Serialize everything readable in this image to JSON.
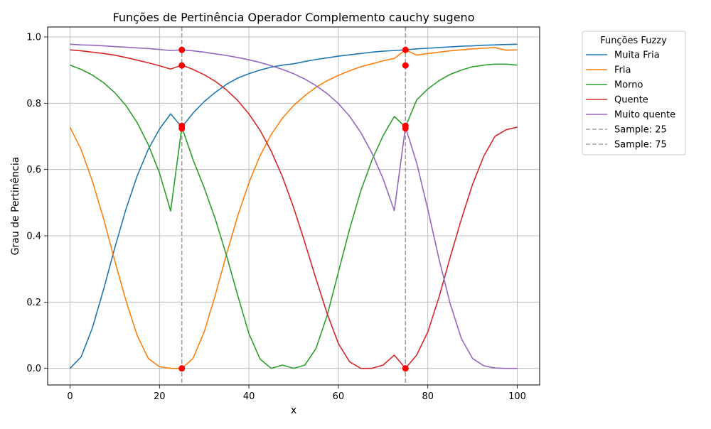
{
  "chart_data": {
    "type": "line",
    "title": "Funções de Pertinência Operador Complemento cauchy sugeno",
    "xlabel": "x",
    "ylabel": "Grau de Pertinência",
    "xlim": [
      -5,
      105
    ],
    "ylim": [
      -0.05,
      1.03
    ],
    "xticks": [
      0,
      20,
      40,
      60,
      80,
      100
    ],
    "xtick_labels": [
      "0",
      "20",
      "40",
      "60",
      "80",
      "100"
    ],
    "yticks": [
      0.0,
      0.2,
      0.4,
      0.6,
      0.8,
      1.0
    ],
    "ytick_labels": [
      "0.0",
      "0.2",
      "0.4",
      "0.6",
      "0.8",
      "1.0"
    ],
    "grid": true,
    "legend": {
      "title": "Funções Fuzzy",
      "placement": "outside-right"
    },
    "x": [
      0,
      2.5,
      5,
      7.5,
      10,
      12.5,
      15,
      17.5,
      20,
      22.5,
      25,
      27.5,
      30,
      32.5,
      35,
      37.5,
      40,
      42.5,
      45,
      47.5,
      50,
      52.5,
      55,
      57.5,
      60,
      62.5,
      65,
      67.5,
      70,
      72.5,
      75,
      77.5,
      80,
      82.5,
      85,
      87.5,
      90,
      92.5,
      95,
      97.5,
      100
    ],
    "series": [
      {
        "name": "Muita Fria",
        "color": "#1f77b4",
        "values": [
          0.0,
          0.035,
          0.122,
          0.238,
          0.363,
          0.48,
          0.58,
          0.661,
          0.722,
          0.768,
          0.728,
          0.77,
          0.805,
          0.833,
          0.857,
          0.876,
          0.889,
          0.9,
          0.909,
          0.915,
          0.919,
          0.926,
          0.932,
          0.937,
          0.942,
          0.946,
          0.95,
          0.954,
          0.957,
          0.959,
          0.961,
          0.964,
          0.966,
          0.968,
          0.97,
          0.972,
          0.973,
          0.975,
          0.976,
          0.977,
          0.978
        ]
      },
      {
        "name": "Fria",
        "color": "#ff7f0e",
        "values": [
          0.728,
          0.66,
          0.565,
          0.452,
          0.325,
          0.205,
          0.1,
          0.03,
          0.005,
          0.0,
          0.0,
          0.03,
          0.11,
          0.222,
          0.345,
          0.46,
          0.56,
          0.642,
          0.706,
          0.755,
          0.793,
          0.823,
          0.848,
          0.868,
          0.884,
          0.898,
          0.91,
          0.919,
          0.928,
          0.935,
          0.961,
          0.945,
          0.95,
          0.954,
          0.958,
          0.961,
          0.964,
          0.966,
          0.968,
          0.96,
          0.961
        ]
      },
      {
        "name": "Morno",
        "color": "#2ca02c",
        "values": [
          0.915,
          0.902,
          0.885,
          0.862,
          0.832,
          0.793,
          0.742,
          0.675,
          0.59,
          0.475,
          0.728,
          0.63,
          0.545,
          0.45,
          0.34,
          0.22,
          0.105,
          0.028,
          0.0,
          0.01,
          0.0,
          0.01,
          0.06,
          0.16,
          0.29,
          0.42,
          0.535,
          0.628,
          0.702,
          0.76,
          0.728,
          0.81,
          0.843,
          0.868,
          0.887,
          0.9,
          0.91,
          0.915,
          0.918,
          0.918,
          0.915
        ]
      },
      {
        "name": "Quente",
        "color": "#d62728",
        "values": [
          0.961,
          0.958,
          0.954,
          0.95,
          0.945,
          0.938,
          0.93,
          0.922,
          0.913,
          0.903,
          0.915,
          0.902,
          0.886,
          0.866,
          0.84,
          0.808,
          0.768,
          0.718,
          0.655,
          0.578,
          0.485,
          0.38,
          0.27,
          0.165,
          0.075,
          0.02,
          0.0,
          0.0,
          0.01,
          0.04,
          0.0,
          0.04,
          0.11,
          0.215,
          0.335,
          0.45,
          0.555,
          0.64,
          0.7,
          0.72,
          0.728
        ]
      },
      {
        "name": "Muito quente",
        "color": "#9467bd",
        "values": [
          0.978,
          0.976,
          0.975,
          0.973,
          0.971,
          0.969,
          0.967,
          0.965,
          0.962,
          0.959,
          0.961,
          0.958,
          0.954,
          0.949,
          0.944,
          0.938,
          0.931,
          0.923,
          0.913,
          0.902,
          0.889,
          0.873,
          0.853,
          0.829,
          0.799,
          0.761,
          0.712,
          0.65,
          0.572,
          0.476,
          0.728,
          0.62,
          0.48,
          0.33,
          0.195,
          0.09,
          0.03,
          0.008,
          0.001,
          0.0,
          0.0
        ]
      },
      {
        "name": "Sample: 25",
        "color": "#a0a0a0",
        "type": "vline",
        "x": 25
      },
      {
        "name": "Sample: 75",
        "color": "#a0a0a0",
        "type": "vline",
        "x": 75
      }
    ],
    "points": [
      {
        "x": 25,
        "y": 0.0
      },
      {
        "x": 25,
        "y": 0.724
      },
      {
        "x": 25,
        "y": 0.732
      },
      {
        "x": 25,
        "y": 0.914
      },
      {
        "x": 25,
        "y": 0.961
      },
      {
        "x": 75,
        "y": 0.0
      },
      {
        "x": 75,
        "y": 0.724
      },
      {
        "x": 75,
        "y": 0.732
      },
      {
        "x": 75,
        "y": 0.914
      },
      {
        "x": 75,
        "y": 0.961
      }
    ]
  }
}
